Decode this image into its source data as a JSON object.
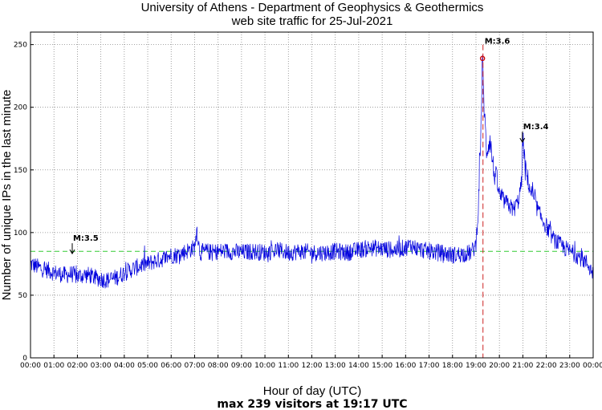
{
  "chart_data": {
    "type": "line",
    "title": "University of Athens - Department of Geophysics & Geothermics",
    "subtitle": "web site traffic for 25-Jul-2021",
    "xlabel": "Hour of day (UTC)",
    "ylabel": "Number of unique IPs in the last minute",
    "footer": "max 239 visitors at 19:17 UTC",
    "xlim_hours": [
      0,
      24
    ],
    "ylim": [
      0,
      260
    ],
    "yticks": [
      0,
      50,
      100,
      150,
      200,
      250
    ],
    "xtick_labels": [
      "00:00",
      "01:00",
      "02:00",
      "03:00",
      "04:00",
      "05:00",
      "06:00",
      "07:00",
      "08:00",
      "09:00",
      "10:00",
      "11:00",
      "12:00",
      "13:00",
      "14:00",
      "15:00",
      "16:00",
      "17:00",
      "18:00",
      "19:00",
      "20:00",
      "21:00",
      "22:00",
      "23:00",
      "00:00"
    ],
    "grid": true,
    "reference_line": {
      "y": 85,
      "color": "#33cc33",
      "style": "dashed"
    },
    "max_marker": {
      "x_hour": 19.28,
      "y": 239,
      "color": "#cc0000"
    },
    "series": [
      {
        "color": "#0000dd",
        "x_hours": [
          0,
          0.25,
          0.5,
          0.75,
          1,
          1.25,
          1.5,
          1.75,
          2,
          2.25,
          2.5,
          2.75,
          3,
          3.25,
          3.5,
          3.75,
          4,
          4.25,
          4.5,
          4.75,
          5,
          5.25,
          5.5,
          5.75,
          6,
          6.25,
          6.5,
          6.75,
          7,
          7.1,
          7.2,
          7.25,
          7.5,
          7.75,
          8,
          8.5,
          9,
          9.5,
          10,
          10.5,
          11,
          11.5,
          12,
          12.5,
          13,
          13.5,
          14,
          14.5,
          15,
          15.5,
          16,
          16.25,
          16.5,
          16.75,
          17,
          17.5,
          18,
          18.5,
          18.8,
          19,
          19.1,
          19.2,
          19.28,
          19.35,
          19.45,
          19.6,
          19.75,
          19.9,
          20,
          20.2,
          20.4,
          20.6,
          20.8,
          20.95,
          21,
          21.1,
          21.3,
          21.5,
          21.7,
          22,
          22.3,
          22.6,
          23,
          23.3,
          23.6,
          23.8,
          24
        ],
        "values": [
          75,
          73,
          71,
          70,
          68,
          67,
          66,
          67,
          65,
          66,
          66,
          64,
          63,
          62,
          63,
          65,
          68,
          70,
          72,
          74,
          75,
          77,
          78,
          80,
          82,
          82,
          84,
          86,
          88,
          103,
          87,
          84,
          85,
          84,
          85,
          85,
          84,
          85,
          84,
          86,
          84,
          85,
          84,
          84,
          85,
          84,
          86,
          88,
          87,
          86,
          88,
          90,
          87,
          86,
          85,
          84,
          82,
          83,
          84,
          90,
          120,
          175,
          239,
          200,
          165,
          175,
          150,
          140,
          130,
          125,
          122,
          118,
          125,
          140,
          178,
          150,
          135,
          125,
          115,
          105,
          95,
          90,
          85,
          82,
          78,
          74,
          67
        ]
      }
    ],
    "annotations": [
      {
        "label": "M:3.5",
        "x_hour": 1.78,
        "y": 87
      },
      {
        "label": "M:3.6",
        "x_hour": 19.3,
        "y": 250,
        "dashed_line_color": "#cc2222"
      },
      {
        "label": "M:3.4",
        "x_hour": 20.98,
        "y": 176
      }
    ]
  }
}
